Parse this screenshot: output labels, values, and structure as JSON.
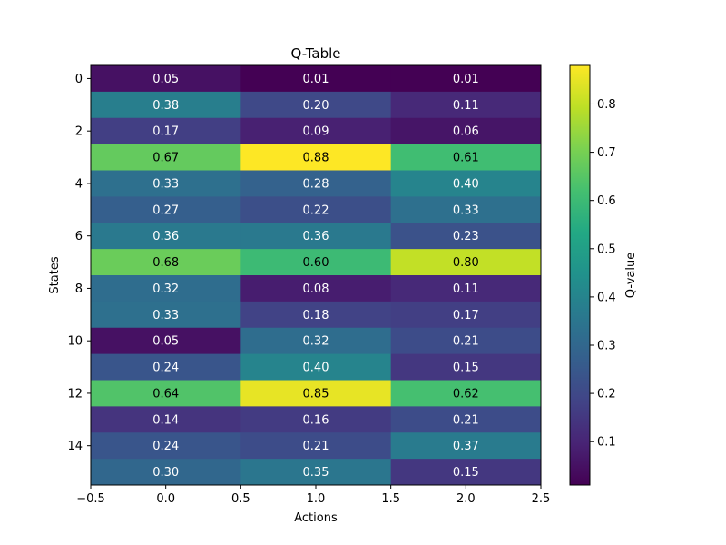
{
  "chart_data": {
    "type": "heatmap",
    "title": "Q-Table",
    "xlabel": "Actions",
    "ylabel": "States",
    "colorbar_label": "Q-value",
    "colormap": "viridis",
    "xlim": [
      -0.5,
      2.5
    ],
    "ylim": [
      15.5,
      -0.5
    ],
    "x_ticks": [
      -0.5,
      0.0,
      0.5,
      1.0,
      1.5,
      2.0,
      2.5
    ],
    "x_tick_labels": [
      "−0.5",
      "0.0",
      "0.5",
      "1.0",
      "1.5",
      "2.0",
      "2.5"
    ],
    "y_ticks": [
      0,
      2,
      4,
      6,
      8,
      10,
      12,
      14
    ],
    "y_tick_labels": [
      "0",
      "2",
      "4",
      "6",
      "8",
      "10",
      "12",
      "14"
    ],
    "colorbar_range": [
      0.01,
      0.88
    ],
    "colorbar_ticks": [
      0.1,
      0.2,
      0.3,
      0.4,
      0.5,
      0.6,
      0.7,
      0.8
    ],
    "colorbar_tick_labels": [
      "0.1",
      "0.2",
      "0.3",
      "0.4",
      "0.5",
      "0.6",
      "0.7",
      "0.8"
    ],
    "values": [
      [
        0.05,
        0.01,
        0.01
      ],
      [
        0.38,
        0.2,
        0.11
      ],
      [
        0.17,
        0.09,
        0.06
      ],
      [
        0.67,
        0.88,
        0.61
      ],
      [
        0.33,
        0.28,
        0.4
      ],
      [
        0.27,
        0.22,
        0.33
      ],
      [
        0.36,
        0.36,
        0.23
      ],
      [
        0.68,
        0.6,
        0.8
      ],
      [
        0.32,
        0.08,
        0.11
      ],
      [
        0.33,
        0.18,
        0.17
      ],
      [
        0.05,
        0.32,
        0.21
      ],
      [
        0.24,
        0.4,
        0.15
      ],
      [
        0.64,
        0.85,
        0.62
      ],
      [
        0.14,
        0.16,
        0.21
      ],
      [
        0.24,
        0.21,
        0.37
      ],
      [
        0.3,
        0.35,
        0.15
      ]
    ],
    "cell_labels": [
      [
        "0.05",
        "0.01",
        "0.01"
      ],
      [
        "0.38",
        "0.20",
        "0.11"
      ],
      [
        "0.17",
        "0.09",
        "0.06"
      ],
      [
        "0.67",
        "0.88",
        "0.61"
      ],
      [
        "0.33",
        "0.28",
        "0.40"
      ],
      [
        "0.27",
        "0.22",
        "0.33"
      ],
      [
        "0.36",
        "0.36",
        "0.23"
      ],
      [
        "0.68",
        "0.60",
        "0.80"
      ],
      [
        "0.32",
        "0.08",
        "0.11"
      ],
      [
        "0.33",
        "0.18",
        "0.17"
      ],
      [
        "0.05",
        "0.32",
        "0.21"
      ],
      [
        "0.24",
        "0.40",
        "0.15"
      ],
      [
        "0.64",
        "0.85",
        "0.62"
      ],
      [
        "0.14",
        "0.16",
        "0.21"
      ],
      [
        "0.24",
        "0.21",
        "0.37"
      ],
      [
        "0.30",
        "0.35",
        "0.15"
      ]
    ]
  }
}
